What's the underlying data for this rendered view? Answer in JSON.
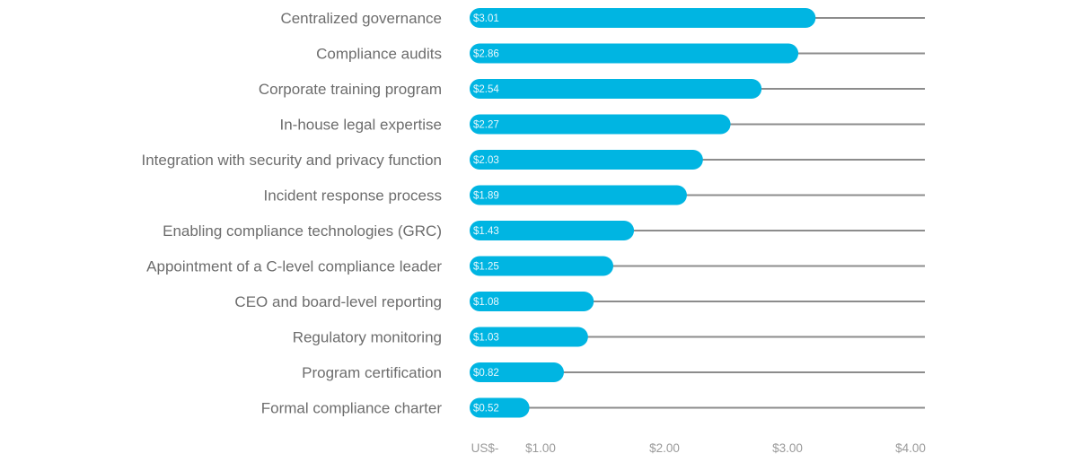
{
  "chart_data": {
    "type": "bar",
    "orientation": "horizontal",
    "categories": [
      "Centralized governance",
      "Compliance audits",
      "Corporate training program",
      "In-house legal expertise",
      "Integration with security and privacy function",
      "Incident response process",
      "Enabling compliance technologies (GRC)",
      "Appointment of a C-level compliance leader",
      "CEO and board-level reporting",
      "Regulatory monitoring",
      "Program certification",
      "Formal compliance charter"
    ],
    "values": [
      3.01,
      2.86,
      2.54,
      2.27,
      2.03,
      1.89,
      1.43,
      1.25,
      1.08,
      1.03,
      0.82,
      0.52
    ],
    "data_labels": [
      "$3.01",
      "$2.86",
      "$2.54",
      "$2.27",
      "$2.03",
      "$1.89",
      "$1.43",
      "$1.25",
      "$1.08",
      "$1.03",
      "$0.82",
      "$0.52"
    ],
    "x_tick_labels": [
      "US$-",
      "$1.00",
      "$2.00",
      "$3.00",
      "$4.00"
    ],
    "xlim": [
      0,
      4
    ],
    "title": "",
    "xlabel": "",
    "ylabel": "",
    "grid": false,
    "colors": {
      "bar": "#00b5e2",
      "track": "#8c8c8c",
      "label": "#6d6d6d",
      "tick": "#9a9a9a"
    }
  }
}
